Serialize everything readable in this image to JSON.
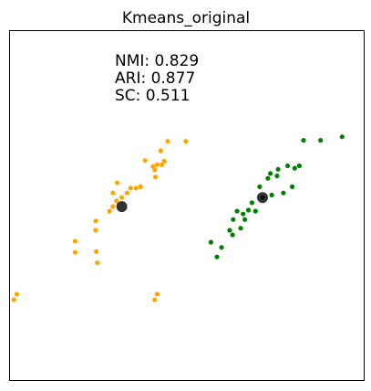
{
  "chart_data": {
    "type": "scatter",
    "title": "Kmeans_original",
    "xlabel": "",
    "ylabel": "",
    "xlim": [
      0,
      100
    ],
    "ylim": [
      0,
      100
    ],
    "grid": false,
    "ticks": false,
    "annotations": [
      "NMI: 0.829",
      "ARI: 0.877",
      "SC: 0.511"
    ],
    "colors": {
      "cluster_a": "#FFA500",
      "cluster_b": "#008000",
      "centroid": "#000000",
      "frame": "#000000"
    },
    "series": [
      {
        "color": "#FFA500",
        "points": [
          [
            44.6,
            68.4
          ],
          [
            49.7,
            68.4
          ],
          [
            42.6,
            65.7
          ],
          [
            38.2,
            62.9
          ],
          [
            40.4,
            61.2
          ],
          [
            41.6,
            61.7
          ],
          [
            42.9,
            61.7
          ],
          [
            43.6,
            62.7
          ],
          [
            40.9,
            60.2
          ],
          [
            41.1,
            58.2
          ],
          [
            30.3,
            56.5
          ],
          [
            36.9,
            55.4
          ],
          [
            35.6,
            55.0
          ],
          [
            34.1,
            55.0
          ],
          [
            29.1,
            53.6
          ],
          [
            33.1,
            53.6
          ],
          [
            31.6,
            52.3
          ],
          [
            30.1,
            51.3
          ],
          [
            29.1,
            49.7
          ],
          [
            28.1,
            48.4
          ],
          [
            24.2,
            45.6
          ],
          [
            24.2,
            42.9
          ],
          [
            24.4,
            36.8
          ],
          [
            24.7,
            33.6
          ],
          [
            18.4,
            39.8
          ],
          [
            18.4,
            36.6
          ],
          [
            1.9,
            24.6
          ],
          [
            1.1,
            23.0
          ],
          [
            41.6,
            24.6
          ],
          [
            40.9,
            23.0
          ]
        ]
      },
      {
        "color": "#008000",
        "points": [
          [
            93.9,
            69.7
          ],
          [
            87.8,
            68.7
          ],
          [
            83.0,
            68.7
          ],
          [
            81.8,
            61.4
          ],
          [
            78.5,
            61.4
          ],
          [
            80.5,
            60.7
          ],
          [
            75.8,
            60.4
          ],
          [
            73.6,
            59.2
          ],
          [
            75.5,
            58.5
          ],
          [
            72.9,
            57.8
          ],
          [
            70.6,
            55.4
          ],
          [
            79.8,
            55.4
          ],
          [
            77.3,
            53.6
          ],
          [
            74.0,
            53.0
          ],
          [
            71.4,
            52.3
          ],
          [
            68.4,
            50.8
          ],
          [
            67.4,
            48.7
          ],
          [
            64.2,
            48.4
          ],
          [
            69.4,
            48.4
          ],
          [
            65.9,
            47.6
          ],
          [
            66.4,
            46.0
          ],
          [
            63.1,
            46.0
          ],
          [
            65.2,
            43.5
          ],
          [
            62.1,
            42.9
          ],
          [
            62.9,
            41.6
          ],
          [
            56.8,
            39.5
          ],
          [
            59.8,
            38.0
          ],
          [
            58.5,
            35.3
          ]
        ]
      }
    ],
    "centroids": [
      [
        31.6,
        49.7
      ],
      [
        71.4,
        52.3
      ]
    ]
  }
}
